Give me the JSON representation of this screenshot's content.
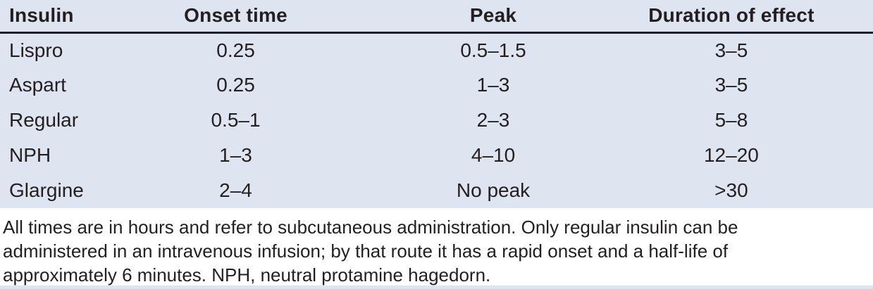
{
  "table": {
    "columns": [
      "Insulin",
      "Onset time",
      "Peak",
      "Duration of effect"
    ],
    "rows": [
      {
        "cells": [
          "Lispro",
          "0.25",
          "0.5–1.5",
          "3–5"
        ]
      },
      {
        "cells": [
          "Aspart",
          "0.25",
          "1–3",
          "3–5"
        ]
      },
      {
        "cells": [
          "Regular",
          "0.5–1",
          "2–3",
          "5–8"
        ]
      },
      {
        "cells": [
          "NPH",
          "1–3",
          "4–10",
          "12–20"
        ]
      },
      {
        "cells": [
          "Glargine",
          "2–4",
          "No peak",
          ">30"
        ]
      }
    ]
  },
  "footnote": {
    "lines": [
      "All times are in hours and refer to subcutaneous administration. Only regular insulin can be",
      "administered in an intravenous infusion; by that route it has a rapid onset and a half-life of",
      "approximately 6 minutes. NPH, neutral protamine hagedorn."
    ]
  },
  "colors": {
    "table_bg": "#dfe4f1",
    "header_rule": "#1e1e28",
    "text": "#231f20"
  }
}
